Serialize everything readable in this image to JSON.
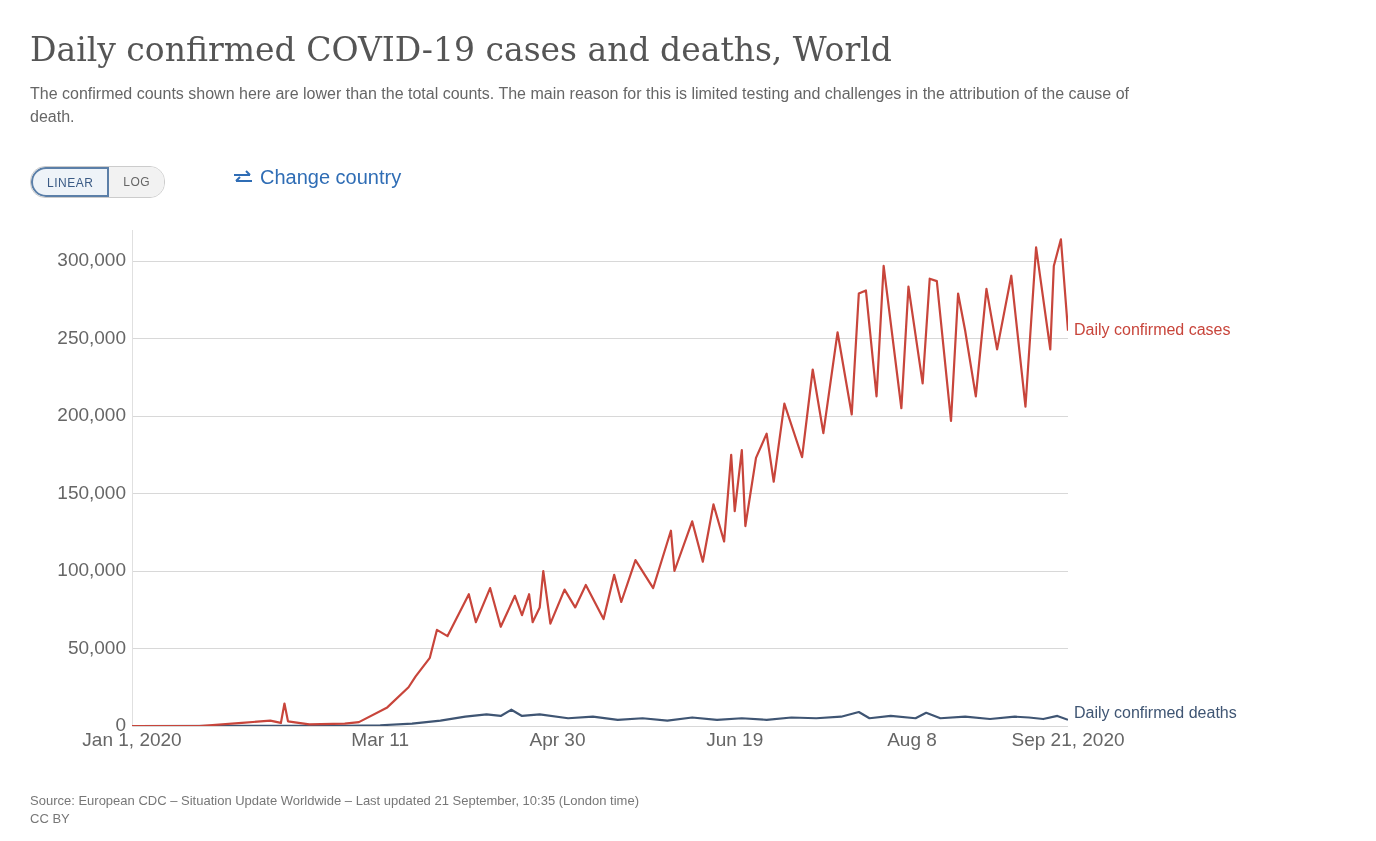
{
  "chart_data": {
    "type": "line",
    "title": "Daily confirmed COVID-19 cases and deaths, World",
    "subtitle": "The confirmed counts shown here are lower than the total counts. The main reason for this is limited testing and challenges in the attribution of the cause of death.",
    "xlim": [
      "2020-01-01",
      "2020-09-21"
    ],
    "xticks": [
      {
        "value": "2020-01-01",
        "label": "Jan 1, 2020"
      },
      {
        "value": "2020-03-11",
        "label": "Mar 11"
      },
      {
        "value": "2020-04-30",
        "label": "Apr 30"
      },
      {
        "value": "2020-06-19",
        "label": "Jun 19"
      },
      {
        "value": "2020-08-08",
        "label": "Aug 8"
      },
      {
        "value": "2020-09-21",
        "label": "Sep 21, 2020"
      }
    ],
    "ylim": [
      0,
      320000
    ],
    "yticks": [
      {
        "value": 0,
        "label": "0"
      },
      {
        "value": 50000,
        "label": "50,000"
      },
      {
        "value": 100000,
        "label": "100,000"
      },
      {
        "value": 150000,
        "label": "150,000"
      },
      {
        "value": 200000,
        "label": "200,000"
      },
      {
        "value": 250000,
        "label": "250,000"
      },
      {
        "value": 300000,
        "label": "300,000"
      }
    ],
    "grid": "y",
    "legend": false,
    "marker": "none",
    "line_style": "solid",
    "series": [
      {
        "name": "Daily confirmed cases",
        "color": "#c8453b",
        "x": [
          "2020-01-01",
          "2020-01-20",
          "2020-02-01",
          "2020-02-09",
          "2020-02-12",
          "2020-02-13",
          "2020-02-14",
          "2020-02-20",
          "2020-03-01",
          "2020-03-05",
          "2020-03-13",
          "2020-03-19",
          "2020-03-21",
          "2020-03-25",
          "2020-03-27",
          "2020-03-30",
          "2020-04-05",
          "2020-04-07",
          "2020-04-11",
          "2020-04-14",
          "2020-04-18",
          "2020-04-20",
          "2020-04-22",
          "2020-04-23",
          "2020-04-25",
          "2020-04-26",
          "2020-04-28",
          "2020-05-02",
          "2020-05-05",
          "2020-05-08",
          "2020-05-13",
          "2020-05-16",
          "2020-05-18",
          "2020-05-22",
          "2020-05-27",
          "2020-06-01",
          "2020-06-02",
          "2020-06-07",
          "2020-06-10",
          "2020-06-13",
          "2020-06-16",
          "2020-06-18",
          "2020-06-19",
          "2020-06-21",
          "2020-06-22",
          "2020-06-25",
          "2020-06-28",
          "2020-06-30",
          "2020-07-03",
          "2020-07-08",
          "2020-07-11",
          "2020-07-14",
          "2020-07-18",
          "2020-07-22",
          "2020-07-24",
          "2020-07-26",
          "2020-07-29",
          "2020-07-31",
          "2020-08-05",
          "2020-08-07",
          "2020-08-11",
          "2020-08-13",
          "2020-08-15",
          "2020-08-19",
          "2020-08-21",
          "2020-08-23",
          "2020-08-26",
          "2020-08-29",
          "2020-09-01",
          "2020-09-05",
          "2020-09-09",
          "2020-09-12",
          "2020-09-16",
          "2020-09-17",
          "2020-09-19",
          "2020-09-21"
        ],
        "values": [
          0,
          0,
          2000,
          3500,
          2000,
          14500,
          3000,
          1000,
          1500,
          2500,
          12000,
          25000,
          32000,
          44000,
          62000,
          58000,
          85000,
          67000,
          89000,
          64000,
          84000,
          71500,
          85000,
          67000,
          76500,
          100000,
          66000,
          88000,
          76500,
          91000,
          69000,
          97500,
          80000,
          107000,
          89000,
          126000,
          100000,
          132000,
          106000,
          143000,
          119000,
          175000,
          138600,
          178000,
          129000,
          173000,
          188600,
          157600,
          208000,
          173400,
          230000,
          189000,
          254000,
          201000,
          279000,
          281000,
          212700,
          296800,
          205000,
          283500,
          221000,
          288600,
          287000,
          196800,
          279000,
          255000,
          212700,
          282000,
          243000,
          290500,
          206000,
          308800,
          243000,
          296800,
          314000,
          255000
        ]
      },
      {
        "name": "Daily confirmed deaths",
        "color": "#3f5573",
        "x": [
          "2020-01-01",
          "2020-03-01",
          "2020-03-11",
          "2020-03-20",
          "2020-03-28",
          "2020-04-04",
          "2020-04-10",
          "2020-04-14",
          "2020-04-17",
          "2020-04-20",
          "2020-04-25",
          "2020-05-03",
          "2020-05-10",
          "2020-05-17",
          "2020-05-24",
          "2020-05-31",
          "2020-06-07",
          "2020-06-14",
          "2020-06-21",
          "2020-06-28",
          "2020-07-05",
          "2020-07-12",
          "2020-07-19",
          "2020-07-24",
          "2020-07-27",
          "2020-08-02",
          "2020-08-09",
          "2020-08-12",
          "2020-08-16",
          "2020-08-23",
          "2020-08-30",
          "2020-09-06",
          "2020-09-10",
          "2020-09-14",
          "2020-09-18",
          "2020-09-21"
        ],
        "values": [
          0,
          100,
          500,
          1500,
          3500,
          6000,
          7500,
          6500,
          10500,
          6500,
          7500,
          5000,
          6000,
          4000,
          5000,
          3500,
          5500,
          4000,
          5000,
          4000,
          5500,
          5000,
          6000,
          9000,
          5000,
          6500,
          5000,
          8500,
          5000,
          6000,
          4500,
          6000,
          5500,
          4500,
          6500,
          4000
        ]
      }
    ],
    "annotations": [
      "Source: European CDC – Situation Update Worldwide – Last updated 21 September, 10:35 (London time)",
      "CC BY",
      "LINEAR",
      "LOG",
      "Change country"
    ]
  }
}
